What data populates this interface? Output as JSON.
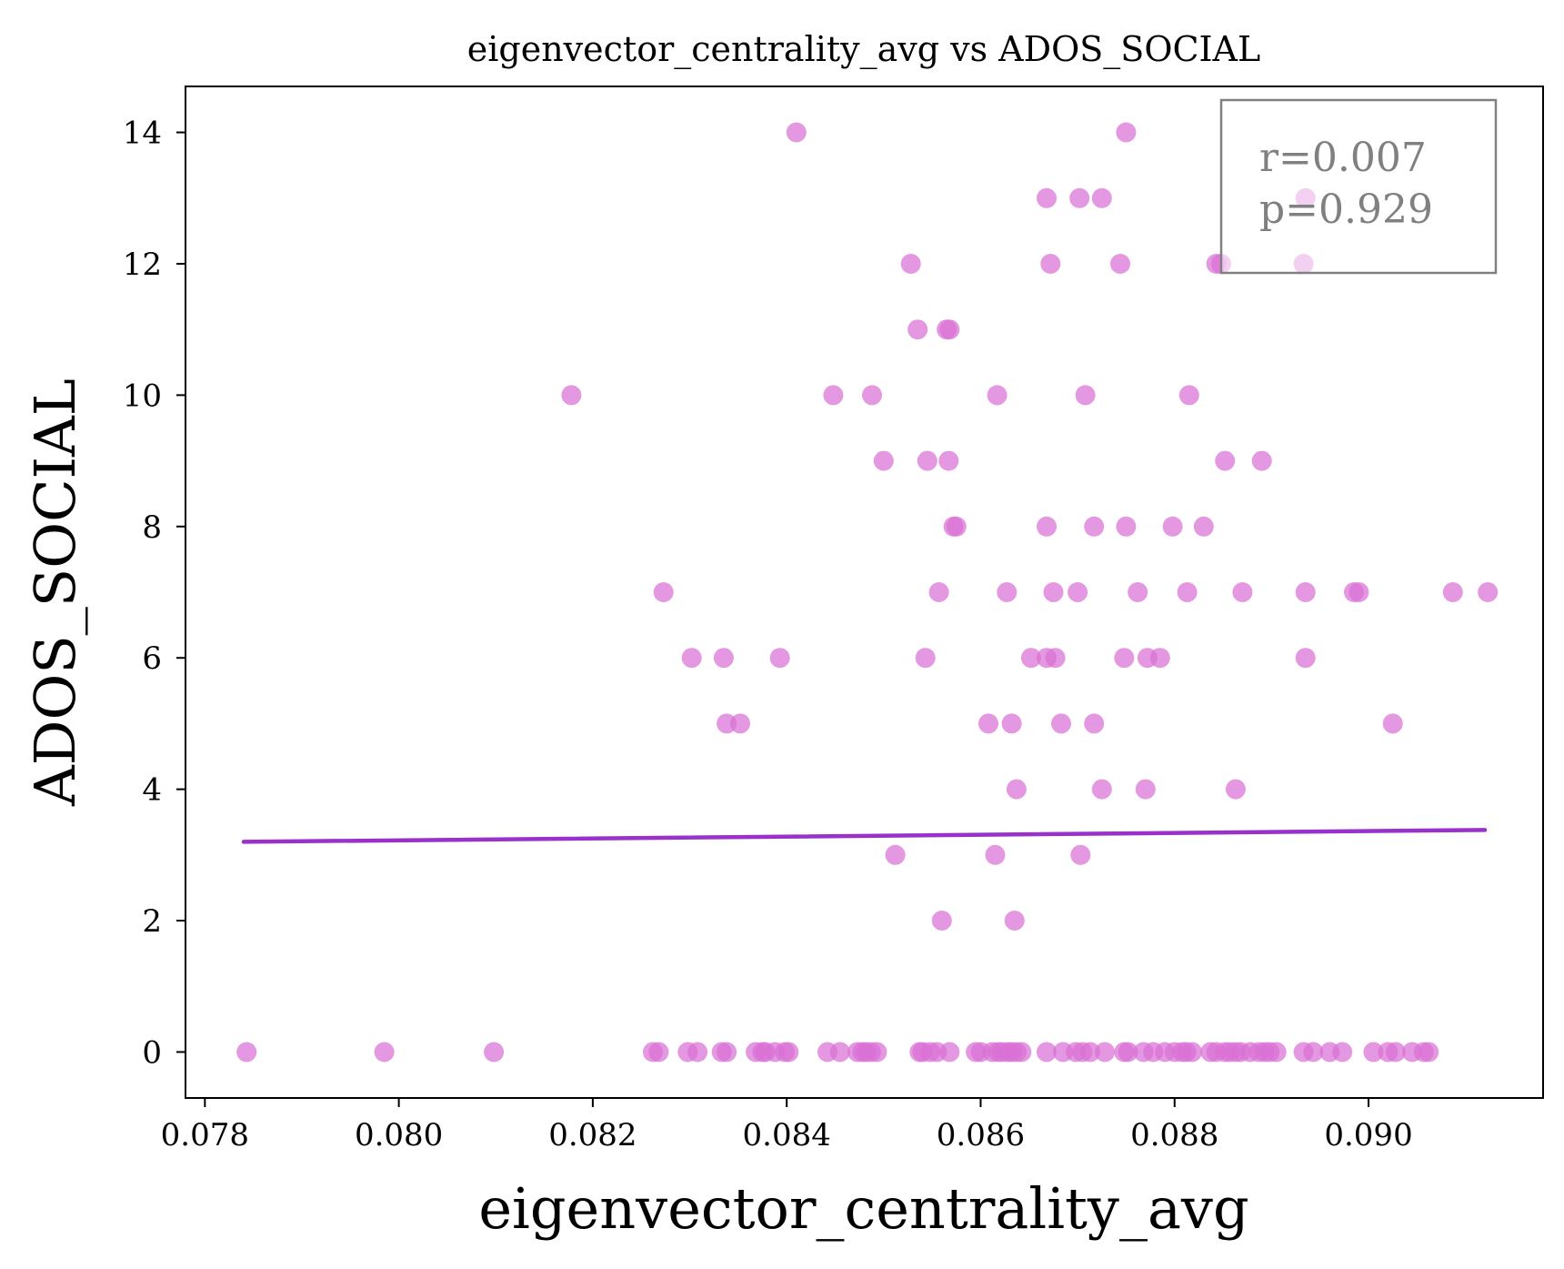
{
  "chart_data": {
    "type": "scatter",
    "title": "eigenvector_centrality_avg vs ADOS_SOCIAL",
    "xlabel": "eigenvector_centrality_avg",
    "ylabel": "ADOS_SOCIAL",
    "xlim": [
      0.0778,
      0.0918
    ],
    "ylim": [
      -0.7,
      14.7
    ],
    "xticks": [
      0.078,
      0.08,
      0.082,
      0.084,
      0.086,
      0.088,
      0.09
    ],
    "xtick_labels": [
      "0.078",
      "0.080",
      "0.082",
      "0.084",
      "0.086",
      "0.088",
      "0.090"
    ],
    "yticks": [
      0,
      2,
      4,
      6,
      8,
      10,
      12,
      14
    ],
    "ytick_labels": [
      "0",
      "2",
      "4",
      "6",
      "8",
      "10",
      "12",
      "14"
    ],
    "grid": false,
    "point_color": "#da70d6",
    "line_color": "#9932cc",
    "stats_box": {
      "r_text": "r=0.007",
      "p_text": "p=0.929"
    },
    "regression_line": {
      "x": [
        0.0784,
        0.0912
      ],
      "y": [
        3.2,
        3.38
      ]
    },
    "series": [
      {
        "x": [
          0.0841,
          0.0875,
          0.08668,
          0.08702,
          0.08725,
          0.08935,
          0.08528,
          0.08672,
          0.08744,
          0.08843,
          0.08848,
          0.08933,
          0.08535,
          0.08565,
          0.08568,
          0.08178,
          0.08448,
          0.08488,
          0.08617,
          0.08708,
          0.08815,
          0.085,
          0.08545,
          0.08567,
          0.08852,
          0.0889,
          0.08572,
          0.08575,
          0.08668,
          0.08717,
          0.0875,
          0.08798,
          0.0883,
          0.08273,
          0.08557,
          0.08627,
          0.08675,
          0.087,
          0.08762,
          0.08813,
          0.0887,
          0.08935,
          0.08985,
          0.0899,
          0.09087,
          0.09123,
          0.08302,
          0.08335,
          0.08393,
          0.08543,
          0.08652,
          0.08668,
          0.08677,
          0.08748,
          0.08772,
          0.08785,
          0.08935,
          0.08338,
          0.08352,
          0.08608,
          0.08632,
          0.08683,
          0.08717,
          0.09025,
          0.08637,
          0.08725,
          0.0877,
          0.08863,
          0.08512,
          0.08615,
          0.08703,
          0.0856,
          0.08635,
          0.07843,
          0.07985,
          0.08098,
          0.08262,
          0.08268,
          0.08298,
          0.08308,
          0.08333,
          0.08338,
          0.08368,
          0.08375,
          0.08378,
          0.08388,
          0.08398,
          0.08402,
          0.08442,
          0.08455,
          0.08473,
          0.08478,
          0.08482,
          0.08487,
          0.08493,
          0.08537,
          0.0854,
          0.08548,
          0.08555,
          0.08568,
          0.08595,
          0.086,
          0.08612,
          0.08618,
          0.08622,
          0.08628,
          0.08632,
          0.08637,
          0.08642,
          0.08668,
          0.08685,
          0.08698,
          0.08705,
          0.08713,
          0.08728,
          0.08748,
          0.08752,
          0.08768,
          0.08778,
          0.0879,
          0.088,
          0.08808,
          0.08812,
          0.08818,
          0.08837,
          0.08843,
          0.08852,
          0.08857,
          0.08863,
          0.08868,
          0.08878,
          0.08887,
          0.08893,
          0.08898,
          0.08905,
          0.08933,
          0.08943,
          0.0896,
          0.08973,
          0.09005,
          0.0902,
          0.09028,
          0.09045,
          0.09057,
          0.09062
        ],
        "y": [
          14,
          14,
          13,
          13,
          13,
          13,
          12,
          12,
          12,
          12,
          12,
          12,
          11,
          11,
          11,
          10,
          10,
          10,
          10,
          10,
          10,
          9,
          9,
          9,
          9,
          9,
          8,
          8,
          8,
          8,
          8,
          8,
          8,
          7,
          7,
          7,
          7,
          7,
          7,
          7,
          7,
          7,
          7,
          7,
          7,
          7,
          6,
          6,
          6,
          6,
          6,
          6,
          6,
          6,
          6,
          6,
          6,
          5,
          5,
          5,
          5,
          5,
          5,
          5,
          4,
          4,
          4,
          4,
          3,
          3,
          3,
          2,
          2,
          0,
          0,
          0,
          0,
          0,
          0,
          0,
          0,
          0,
          0,
          0,
          0,
          0,
          0,
          0,
          0,
          0,
          0,
          0,
          0,
          0,
          0,
          0,
          0,
          0,
          0,
          0,
          0,
          0,
          0,
          0,
          0,
          0,
          0,
          0,
          0,
          0,
          0,
          0,
          0,
          0,
          0,
          0,
          0,
          0,
          0,
          0,
          0,
          0,
          0,
          0,
          0,
          0,
          0,
          0,
          0,
          0,
          0,
          0,
          0,
          0,
          0,
          0,
          0,
          0,
          0,
          0,
          0,
          0,
          0,
          0,
          0
        ]
      }
    ]
  }
}
